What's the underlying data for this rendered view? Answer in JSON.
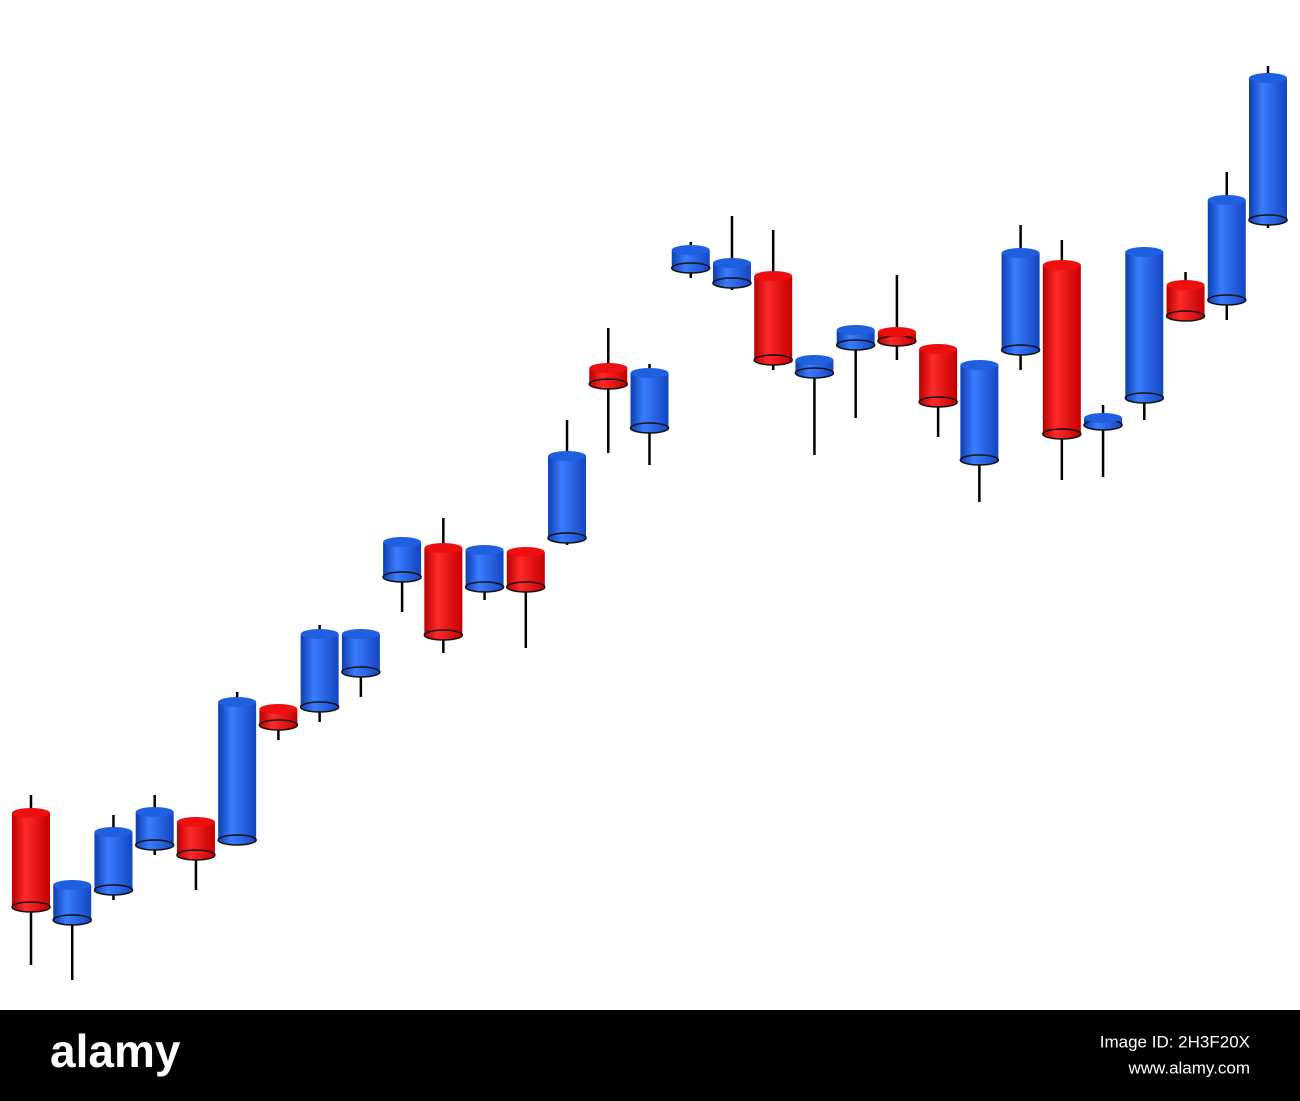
{
  "chart_data": {
    "type": "candlestick",
    "ylim": [
      0,
      1010
    ],
    "up_color": "#1f5fe0",
    "down_color": "#ee1010",
    "series": [
      {
        "open": [
          197,
          90,
          120,
          165,
          188,
          170,
          301,
          303,
          338,
          433,
          462,
          423,
          458,
          472,
          642,
          582,
          742,
          727,
          734,
          637,
          665,
          678,
          661,
          550,
          660,
          745,
          585,
          612,
          725,
          710,
          790
        ],
        "high": [
          215,
          125,
          195,
          215,
          190,
          318,
          303,
          385,
          376,
          468,
          492,
          465,
          458,
          590,
          682,
          646,
          768,
          794,
          780,
          650,
          680,
          735,
          661,
          650,
          785,
          770,
          605,
          758,
          738,
          838,
          944
        ],
        "low": [
          45,
          30,
          110,
          155,
          120,
          165,
          270,
          288,
          313,
          398,
          357,
          410,
          362,
          465,
          557,
          545,
          732,
          720,
          640,
          555,
          592,
          650,
          573,
          508,
          640,
          530,
          533,
          590,
          690,
          690,
          782
        ],
        "close": [
          103,
          125,
          178,
          198,
          155,
          308,
          285,
          376,
          376,
          468,
          375,
          460,
          423,
          554,
          626,
          637,
          760,
          747,
          650,
          650,
          680,
          669,
          608,
          645,
          757,
          576,
          592,
          758,
          694,
          810,
          932
        ]
      }
    ]
  },
  "footer": {
    "logo": "alamy",
    "image_id": "Image ID: 2H3F20X",
    "url": "www.alamy.com"
  }
}
